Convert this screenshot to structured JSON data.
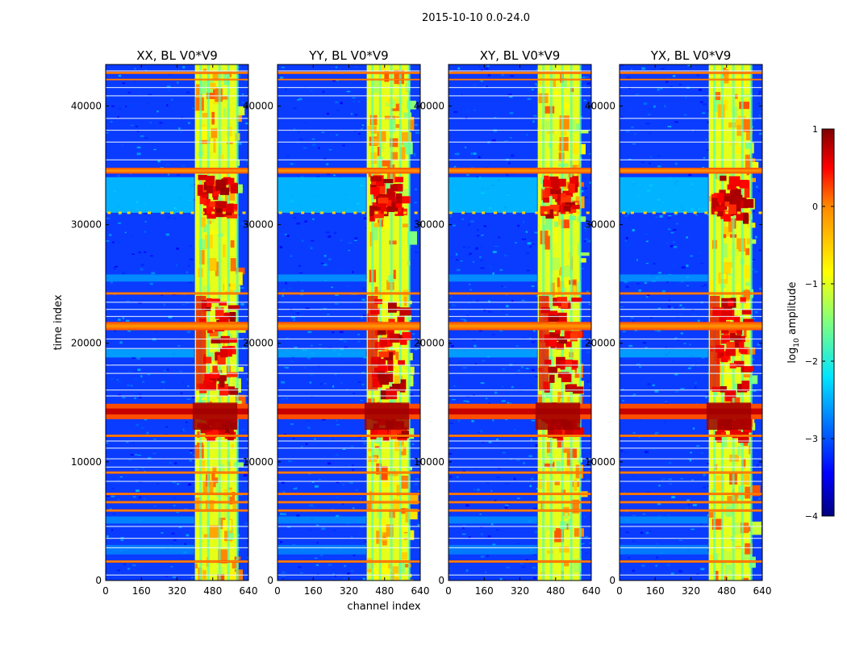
{
  "figure": {
    "suptitle": "2015-10-10 0.0-24.0"
  },
  "chart_data": [
    {
      "type": "heatmap",
      "title": "XX, BL V0*V9",
      "xlabel": "",
      "ylabel": "time index",
      "xlim": [
        0,
        640
      ],
      "ylim": [
        0,
        43500
      ],
      "xticks": [
        0,
        160,
        320,
        480,
        640
      ],
      "yticks": [
        0,
        10000,
        20000,
        30000,
        40000
      ],
      "yticklabels_visible": true
    },
    {
      "type": "heatmap",
      "title": "YY, BL V0*V9",
      "xlabel": "channel index",
      "ylabel": "",
      "xlim": [
        0,
        640
      ],
      "ylim": [
        0,
        43500
      ],
      "xticks": [
        0,
        160,
        320,
        480,
        640
      ],
      "yticks": [
        0,
        10000,
        20000,
        30000,
        40000
      ],
      "yticklabels_visible": true
    },
    {
      "type": "heatmap",
      "title": "XY, BL V0*V9",
      "xlabel": "",
      "ylabel": "",
      "xlim": [
        0,
        640
      ],
      "ylim": [
        0,
        43500
      ],
      "xticks": [
        0,
        160,
        320,
        480,
        640
      ],
      "yticks": [
        0,
        10000,
        20000,
        30000,
        40000
      ],
      "yticklabels_visible": true
    },
    {
      "type": "heatmap",
      "title": "YX, BL V0*V9",
      "xlabel": "",
      "ylabel": "",
      "xlim": [
        0,
        640
      ],
      "ylim": [
        0,
        43500
      ],
      "xticks": [
        0,
        160,
        320,
        480,
        640
      ],
      "yticks": [
        0,
        10000,
        20000,
        30000,
        40000
      ],
      "yticklabels_visible": true
    }
  ],
  "colorbar": {
    "label": "log10 amplitude",
    "range": [
      -4,
      1
    ],
    "ticks": [
      1,
      0,
      -1,
      -2,
      -3,
      -4
    ],
    "ticklabels": [
      "1",
      "0",
      "−1",
      "−2",
      "−3",
      "−4"
    ],
    "colormap": "jet"
  },
  "colors": {
    "jet": [
      "#00007f",
      "#0000ff",
      "#0080ff",
      "#00ffff",
      "#80ff80",
      "#ffff00",
      "#ff8000",
      "#ff0000",
      "#7f0000"
    ]
  }
}
